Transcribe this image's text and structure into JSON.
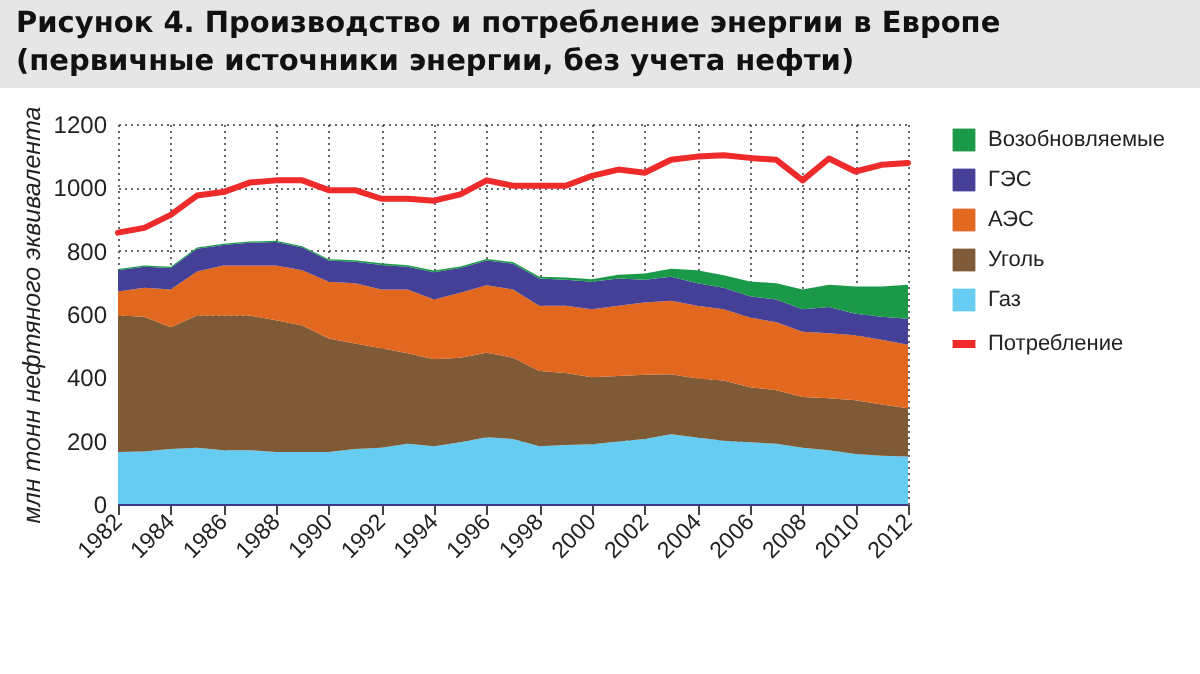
{
  "chart_data": {
    "type": "area",
    "title": "Рисунок 4. Производство и потребление энергии в Европе (первичные источники энергии, без учета нефти)",
    "ylabel": "млн тонн нефтяного эквивалента",
    "stacked": true,
    "x": [
      1982,
      1983,
      1984,
      1985,
      1986,
      1987,
      1988,
      1989,
      1990,
      1991,
      1992,
      1993,
      1994,
      1995,
      1996,
      1997,
      1998,
      1999,
      2000,
      2001,
      2002,
      2003,
      2004,
      2005,
      2006,
      2007,
      2008,
      2009,
      2010,
      2011,
      2012
    ],
    "series": [
      {
        "name": "Газ",
        "color": "#66ccf2",
        "values": [
          164,
          166,
          174,
          178,
          170,
          170,
          164,
          164,
          164,
          174,
          178,
          190,
          182,
          195,
          211,
          205,
          182,
          186,
          189,
          197,
          205,
          220,
          210,
          200,
          195,
          190,
          178,
          170,
          158,
          152,
          150
        ]
      },
      {
        "name": "Уголь",
        "color": "#7f5a36",
        "values": [
          431,
          425,
          384,
          417,
          425,
          425,
          416,
          400,
          359,
          333,
          314,
          286,
          275,
          267,
          267,
          257,
          238,
          228,
          211,
          207,
          203,
          190,
          186,
          190,
          174,
          169,
          160,
          164,
          170,
          162,
          152
        ]
      },
      {
        "name": "АЭС",
        "color": "#e2671f",
        "values": [
          76,
          92,
          119,
          139,
          158,
          158,
          173,
          174,
          179,
          190,
          185,
          201,
          189,
          205,
          213,
          215,
          206,
          212,
          215,
          222,
          228,
          232,
          230,
          225,
          220,
          215,
          206,
          205,
          205,
          205,
          201
        ]
      },
      {
        "name": "ГЭС",
        "color": "#443f97",
        "values": [
          67,
          66,
          68,
          72,
          65,
          72,
          74,
          72,
          67,
          68,
          78,
          72,
          86,
          78,
          78,
          82,
          86,
          82,
          87,
          86,
          72,
          76,
          71,
          68,
          67,
          72,
          71,
          83,
          68,
          72,
          82
        ]
      },
      {
        "name": "Возобновляемые",
        "color": "#1a9a48",
        "values": [
          4,
          4,
          4,
          4,
          4,
          4,
          4,
          4,
          4,
          5,
          5,
          5,
          5,
          5,
          5,
          5,
          6,
          7,
          8,
          12,
          20,
          25,
          41,
          39,
          47,
          51,
          62,
          70,
          86,
          96,
          107
        ]
      },
      {
        "name": "Потребление",
        "type": "line",
        "color": "#ee2a2a",
        "values": [
          857,
          872,
          913,
          974,
          985,
          1015,
          1022,
          1022,
          991,
          991,
          964,
          964,
          958,
          978,
          1022,
          1005,
          1005,
          1005,
          1036,
          1056,
          1046,
          1087,
          1097,
          1101,
          1093,
          1087,
          1022,
          1091,
          1050,
          1071,
          1077
        ]
      }
    ],
    "xlim": [
      1982,
      2012
    ],
    "xticks": [
      1982,
      1984,
      1986,
      1988,
      1990,
      1992,
      1994,
      1996,
      1998,
      2000,
      2002,
      2004,
      2006,
      2008,
      2010,
      2012
    ],
    "ylim": [
      0,
      1200
    ],
    "yticks": [
      0,
      200,
      400,
      600,
      800,
      1000,
      1200
    ],
    "grid": true,
    "legend": "right"
  }
}
